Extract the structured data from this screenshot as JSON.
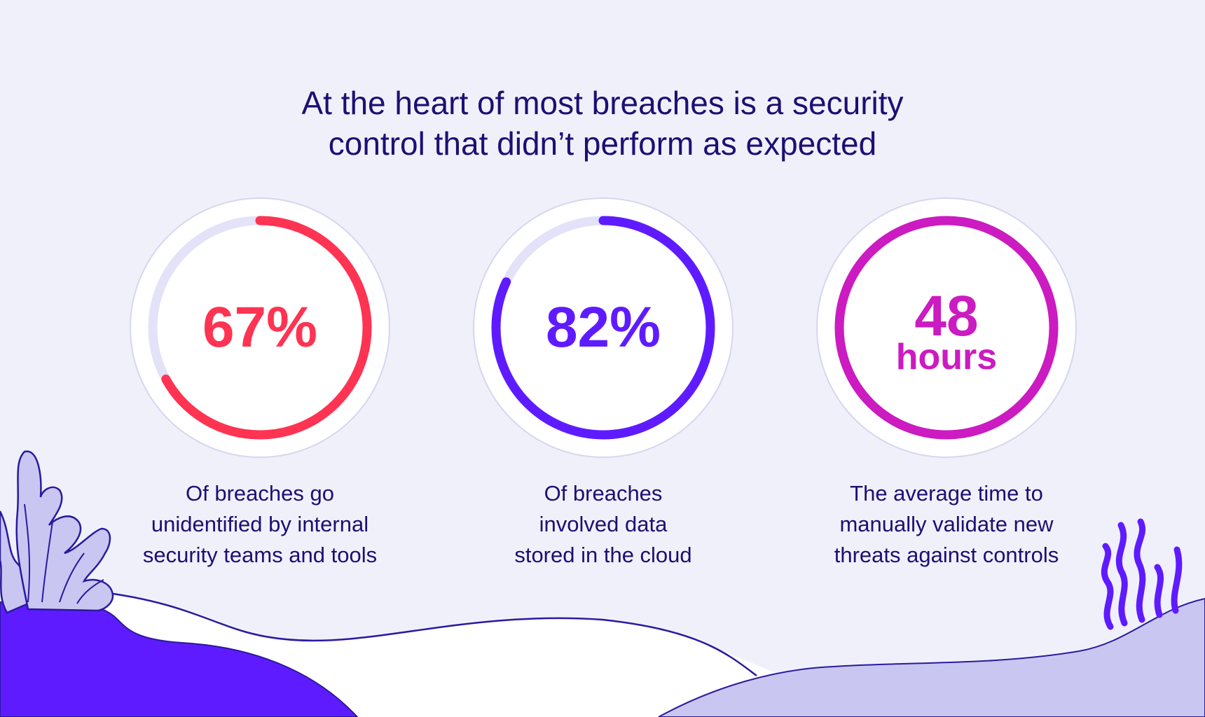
{
  "title": {
    "line1": "At the heart of most breaches is a security",
    "line2": "control that didn’t perform as expected"
  },
  "stats": [
    {
      "value": "67%",
      "color": "#ff3352",
      "progress_fraction": 0.67,
      "caption": [
        "Of breaches go",
        "unidentified by internal",
        "security teams and tools"
      ]
    },
    {
      "value": "82%",
      "color": "#5f1bff",
      "progress_fraction": 0.82,
      "caption": [
        "Of breaches",
        "involved data",
        "stored in the cloud"
      ]
    },
    {
      "value": "48",
      "unit": "hours",
      "color": "#cb1bc1",
      "progress_fraction": 1.0,
      "caption": [
        "The average time to",
        "manually validate new",
        "threats against controls"
      ]
    }
  ],
  "colors": {
    "background": "#f0f0fa",
    "text_dark": "#1c0f73",
    "track": "#e3e2f8",
    "outline": "#d7d6ef",
    "hill_dark": "#5f1bff",
    "hill_light": "#c9c6f2"
  }
}
